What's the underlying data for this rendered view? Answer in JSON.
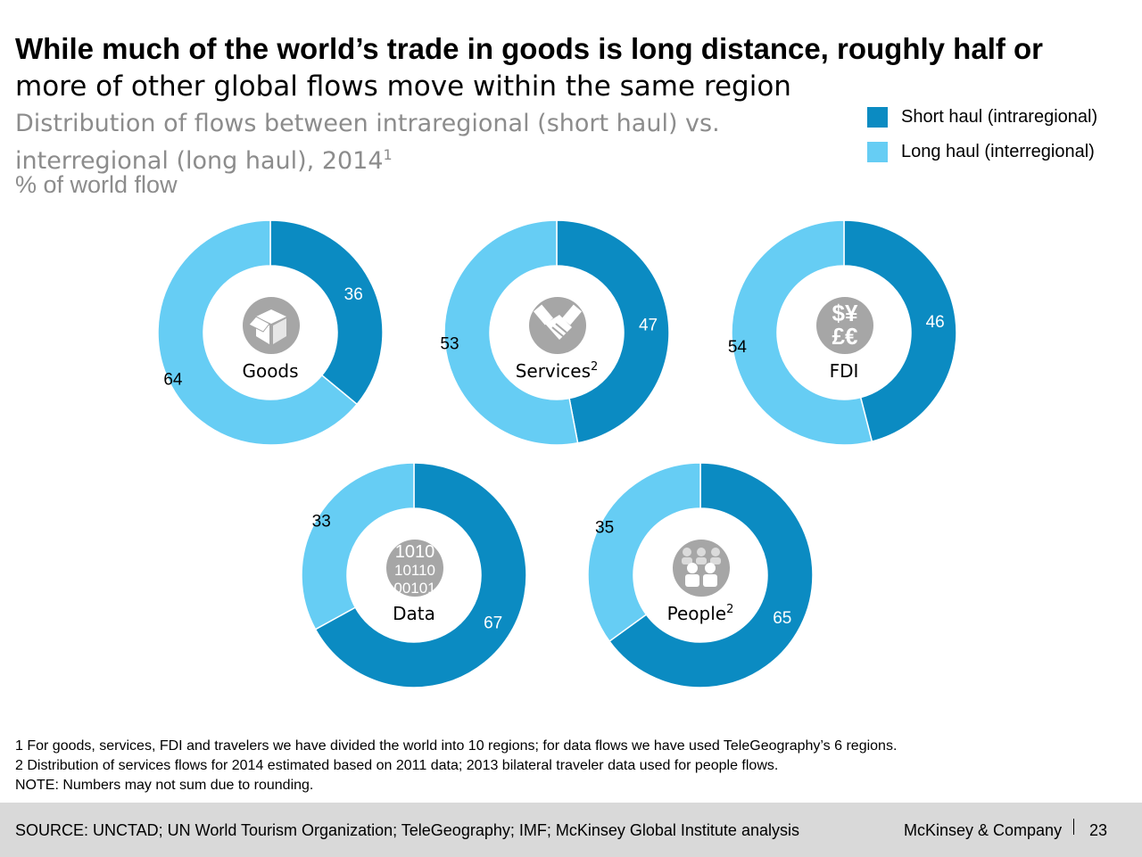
{
  "title_bold": "While much of the world’s trade in goods is long distance, roughly half or",
  "title_rest": "more of other global flows move within the same region",
  "subtitle_line1": "Distribution of flows between intraregional (short haul) vs.",
  "subtitle_line2": "interregional (long haul), 2014",
  "subtitle_sup": "1",
  "unit": "% of world flow",
  "legend": [
    {
      "label": "Short haul (intraregional)",
      "color": "#0b8bc2"
    },
    {
      "label": "Long haul (interregional)",
      "color": "#66cdf4"
    }
  ],
  "chart_data": {
    "type": "pie",
    "series": [
      {
        "name": "Short haul (intraregional)",
        "color": "#0b8bc2"
      },
      {
        "name": "Long haul (interregional)",
        "color": "#66cdf4"
      }
    ],
    "donuts": [
      {
        "category": "Goods",
        "sup": "",
        "short_haul": 36,
        "long_haul": 64,
        "icon": "box-icon"
      },
      {
        "category": "Services",
        "sup": "2",
        "short_haul": 47,
        "long_haul": 53,
        "icon": "handshake-icon"
      },
      {
        "category": "FDI",
        "sup": "",
        "short_haul": 46,
        "long_haul": 54,
        "icon": "currency-icon"
      },
      {
        "category": "Data",
        "sup": "",
        "short_haul": 67,
        "long_haul": 33,
        "icon": "binary-data-icon"
      },
      {
        "category": "People",
        "sup": "2",
        "short_haul": 65,
        "long_haul": 35,
        "icon": "people-icon"
      }
    ]
  },
  "notes": [
    "1 For goods, services, FDI and travelers we have divided the world into 10 regions; for data flows we have used TeleGeography’s 6 regions.",
    "2 Distribution of services flows for 2014 estimated based on 2011 data; 2013 bilateral traveler data used for people flows.",
    "NOTE: Numbers may not sum due to rounding."
  ],
  "footer": {
    "source": "SOURCE: UNCTAD; UN World Tourism Organization; TeleGeography; IMF; McKinsey Global Institute analysis",
    "brand": "McKinsey & Company",
    "page": "23"
  },
  "icon_glyphs": {
    "currency_top": "$¥",
    "currency_bottom": "£€",
    "binary": [
      "10 1 0",
      "1 0 1 1 0",
      "0 0 1 0 1"
    ]
  }
}
